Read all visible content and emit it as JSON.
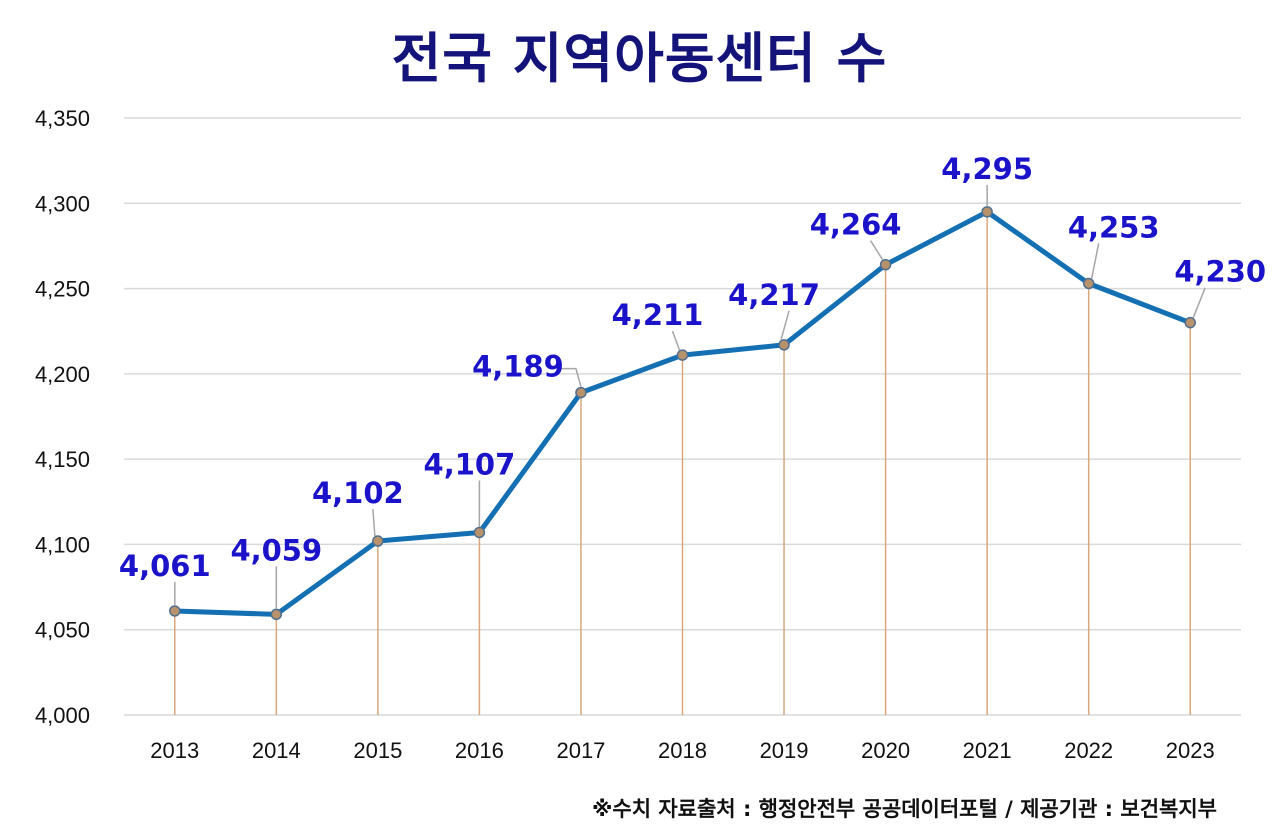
{
  "chart_data": {
    "type": "line",
    "title": "전국 지역아동센터 수",
    "xlabel": "",
    "ylabel": "",
    "categories": [
      "2013",
      "2014",
      "2015",
      "2016",
      "2017",
      "2018",
      "2019",
      "2020",
      "2021",
      "2022",
      "2023"
    ],
    "series": [
      {
        "values": [
          4061,
          4059,
          4102,
          4107,
          4189,
          4211,
          4217,
          4264,
          4295,
          4253,
          4230
        ],
        "labels": [
          "4,061",
          "4,059",
          "4,102",
          "4,107",
          "4,189",
          "4,211",
          "4,217",
          "4,264",
          "4,295",
          "4,253",
          "4,230"
        ]
      }
    ],
    "ylim": [
      4000,
      4350
    ],
    "y_ticks": [
      "4,000",
      "4,050",
      "4,100",
      "4,150",
      "4,200",
      "4,250",
      "4,300",
      "4,350"
    ],
    "grid": true,
    "legend": "none",
    "colors": {
      "line": "#1470b3",
      "marker_fill": "#b8926a",
      "marker_stroke": "#4f6f91",
      "drop_line": "#d9a77a",
      "grid": "#d9d9d9",
      "label": "#1a13c9",
      "title": "#14137a",
      "leader": "#a6a6a6"
    },
    "source_note": "※수치 자료출처 : 행정안전부 공공데이터포털 / 제공기관 : 보건복지부"
  }
}
